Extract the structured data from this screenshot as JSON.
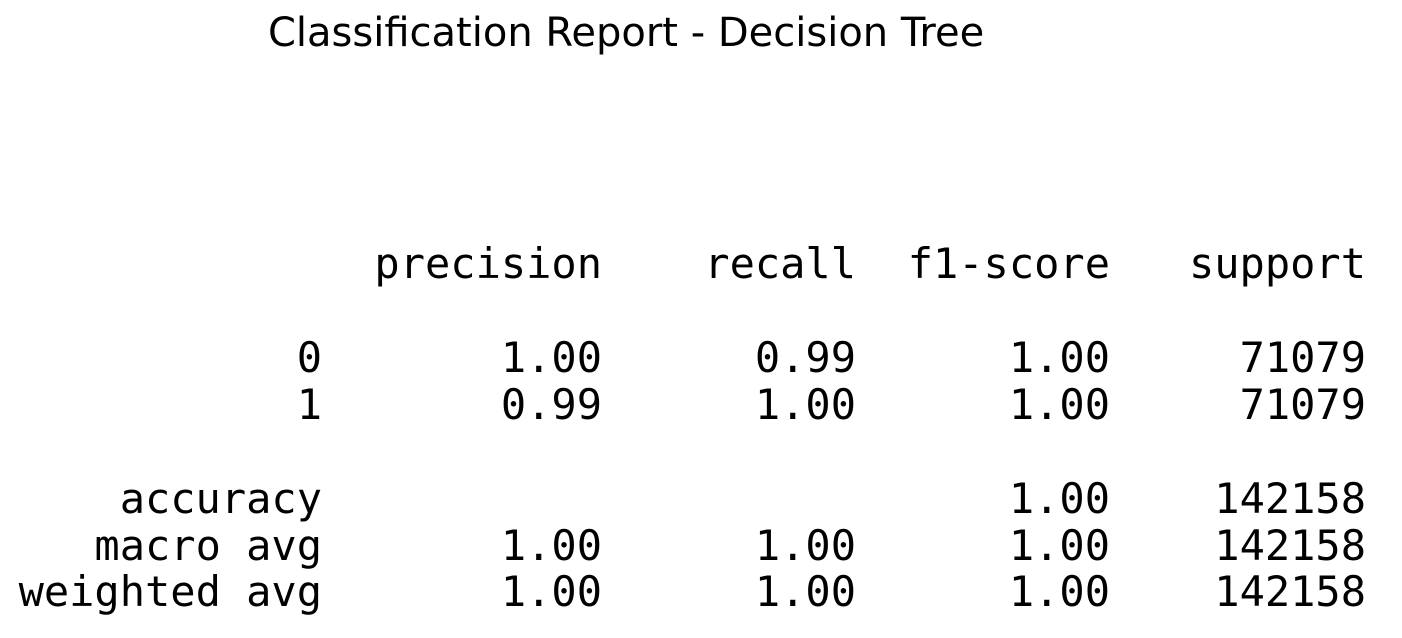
{
  "title": "Classification Report - Decision Tree",
  "report": {
    "headers": [
      "precision",
      "recall",
      "f1-score",
      "support"
    ],
    "rows": [
      {
        "label": "0",
        "precision": "1.00",
        "recall": "0.99",
        "f1": "1.00",
        "support": "71079"
      },
      {
        "label": "1",
        "precision": "0.99",
        "recall": "1.00",
        "f1": "1.00",
        "support": "71079"
      }
    ],
    "accuracy": {
      "label": "accuracy",
      "f1": "1.00",
      "support": "142158"
    },
    "macro_avg": {
      "label": "macro avg",
      "precision": "1.00",
      "recall": "1.00",
      "f1": "1.00",
      "support": "142158"
    },
    "weighted_avg": {
      "label": "weighted avg",
      "precision": "1.00",
      "recall": "1.00",
      "f1": "1.00",
      "support": "142158"
    }
  }
}
